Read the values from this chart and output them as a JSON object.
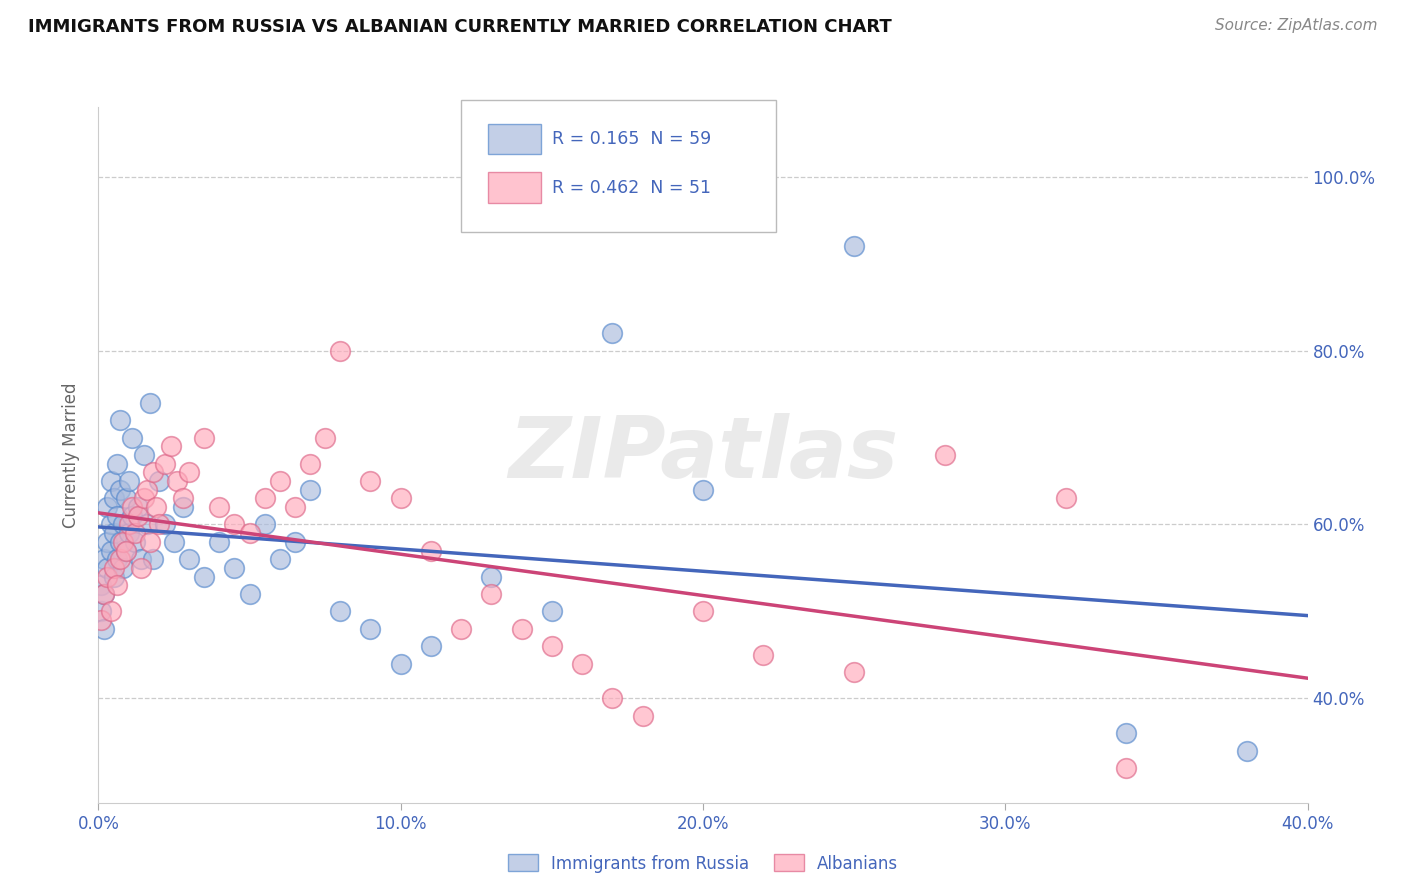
{
  "title": "IMMIGRANTS FROM RUSSIA VS ALBANIAN CURRENTLY MARRIED CORRELATION CHART",
  "source": "Source: ZipAtlas.com",
  "ylabel_label": "Currently Married",
  "x_min": 0.0,
  "x_max": 0.4,
  "y_min": 0.28,
  "y_max": 1.08,
  "x_ticks": [
    0.0,
    0.1,
    0.2,
    0.3,
    0.4
  ],
  "x_tick_labels": [
    "0.0%",
    "10.0%",
    "20.0%",
    "30.0%",
    "40.0%"
  ],
  "y_ticks": [
    0.4,
    0.6,
    0.8,
    1.0
  ],
  "y_tick_labels": [
    "40.0%",
    "60.0%",
    "80.0%",
    "100.0%"
  ],
  "grid_color": "#cccccc",
  "background_color": "#ffffff",
  "blue_fill": "#aabbdd",
  "blue_edge": "#5588cc",
  "pink_fill": "#ffaabb",
  "pink_edge": "#dd6688",
  "blue_line_color": "#4466bb",
  "pink_line_color": "#cc4477",
  "legend_R_blue": "0.165",
  "legend_N_blue": "59",
  "legend_R_pink": "0.462",
  "legend_N_pink": "51",
  "watermark": "ZIPatlas",
  "blue_scatter_x": [
    0.001,
    0.001,
    0.002,
    0.002,
    0.002,
    0.003,
    0.003,
    0.003,
    0.004,
    0.004,
    0.004,
    0.005,
    0.005,
    0.005,
    0.006,
    0.006,
    0.006,
    0.007,
    0.007,
    0.007,
    0.008,
    0.008,
    0.009,
    0.009,
    0.01,
    0.01,
    0.011,
    0.011,
    0.012,
    0.013,
    0.014,
    0.015,
    0.016,
    0.017,
    0.018,
    0.02,
    0.022,
    0.025,
    0.028,
    0.03,
    0.035,
    0.04,
    0.045,
    0.05,
    0.055,
    0.06,
    0.065,
    0.07,
    0.08,
    0.09,
    0.1,
    0.11,
    0.13,
    0.15,
    0.17,
    0.2,
    0.25,
    0.34,
    0.38
  ],
  "blue_scatter_y": [
    0.53,
    0.5,
    0.56,
    0.52,
    0.48,
    0.55,
    0.58,
    0.62,
    0.6,
    0.65,
    0.57,
    0.54,
    0.59,
    0.63,
    0.56,
    0.61,
    0.67,
    0.58,
    0.64,
    0.72,
    0.6,
    0.55,
    0.57,
    0.63,
    0.59,
    0.65,
    0.61,
    0.7,
    0.58,
    0.62,
    0.56,
    0.68,
    0.6,
    0.74,
    0.56,
    0.65,
    0.6,
    0.58,
    0.62,
    0.56,
    0.54,
    0.58,
    0.55,
    0.52,
    0.6,
    0.56,
    0.58,
    0.64,
    0.5,
    0.48,
    0.44,
    0.46,
    0.54,
    0.5,
    0.82,
    0.64,
    0.92,
    0.36,
    0.34
  ],
  "pink_scatter_x": [
    0.001,
    0.002,
    0.003,
    0.004,
    0.005,
    0.006,
    0.007,
    0.008,
    0.009,
    0.01,
    0.011,
    0.012,
    0.013,
    0.014,
    0.015,
    0.016,
    0.017,
    0.018,
    0.019,
    0.02,
    0.022,
    0.024,
    0.026,
    0.028,
    0.03,
    0.035,
    0.04,
    0.045,
    0.05,
    0.055,
    0.06,
    0.065,
    0.07,
    0.075,
    0.08,
    0.09,
    0.1,
    0.11,
    0.12,
    0.13,
    0.14,
    0.15,
    0.16,
    0.17,
    0.18,
    0.2,
    0.22,
    0.25,
    0.28,
    0.32,
    0.34
  ],
  "pink_scatter_y": [
    0.49,
    0.52,
    0.54,
    0.5,
    0.55,
    0.53,
    0.56,
    0.58,
    0.57,
    0.6,
    0.62,
    0.59,
    0.61,
    0.55,
    0.63,
    0.64,
    0.58,
    0.66,
    0.62,
    0.6,
    0.67,
    0.69,
    0.65,
    0.63,
    0.66,
    0.7,
    0.62,
    0.6,
    0.59,
    0.63,
    0.65,
    0.62,
    0.67,
    0.7,
    0.8,
    0.65,
    0.63,
    0.57,
    0.48,
    0.52,
    0.48,
    0.46,
    0.44,
    0.4,
    0.38,
    0.5,
    0.45,
    0.43,
    0.68,
    0.63,
    0.32
  ]
}
